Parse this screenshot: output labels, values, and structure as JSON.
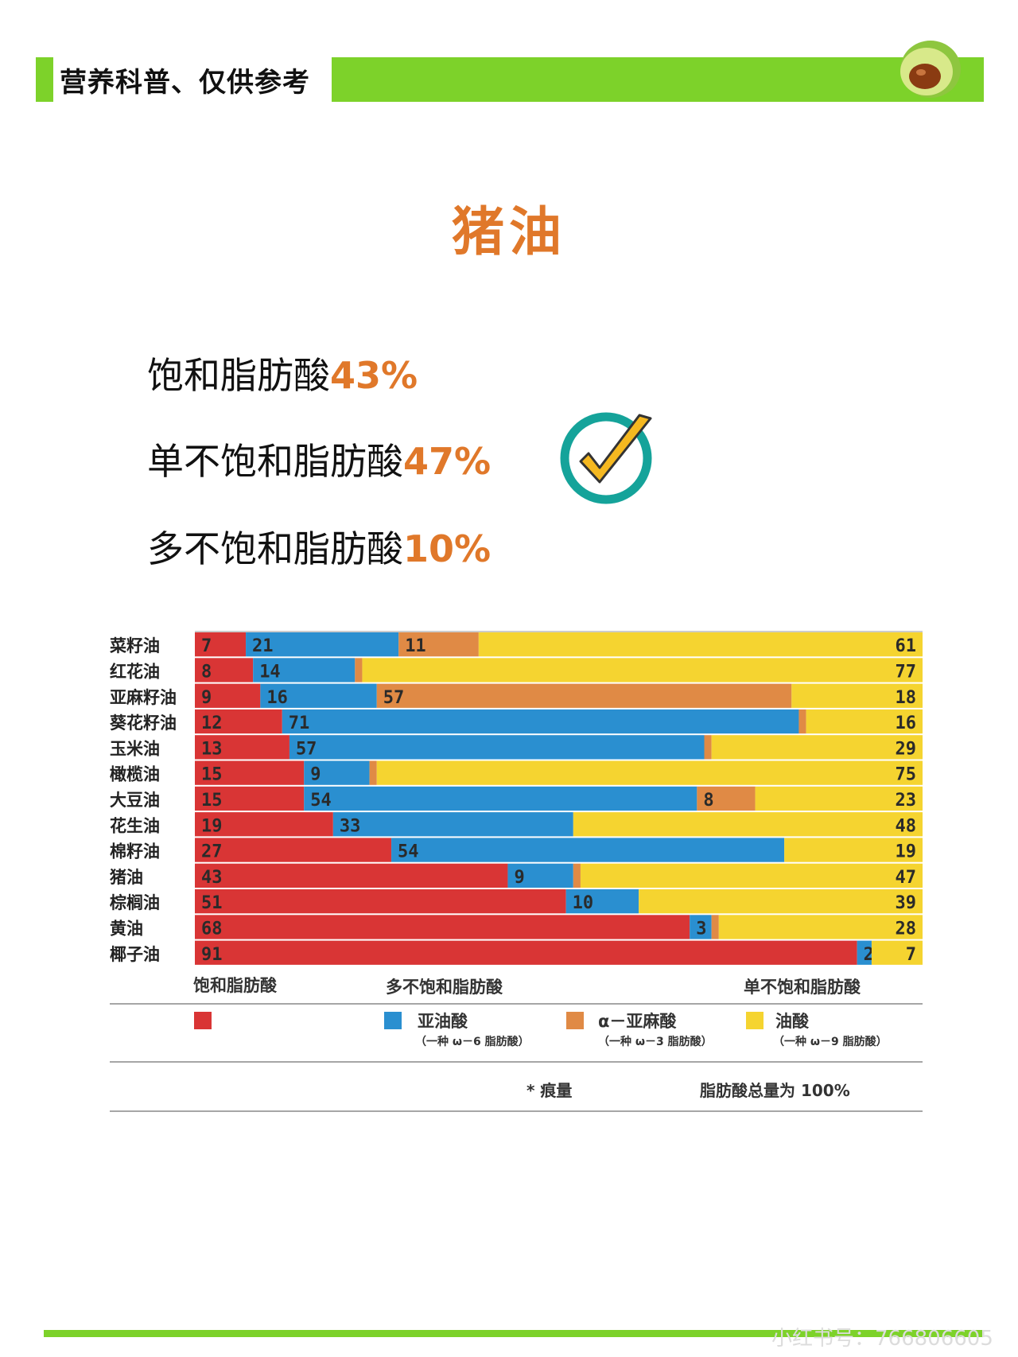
{
  "header": {
    "title": "营养科普、仅供参考"
  },
  "page_title": "猪油",
  "stats": [
    {
      "label": "饱和脂肪酸",
      "value": "43%"
    },
    {
      "label": "单不饱和脂肪酸",
      "value": "47%"
    },
    {
      "label": "多不饱和脂肪酸",
      "value": "10%"
    }
  ],
  "icons": {
    "check": "check-circle-icon",
    "logo": "avocado-icon"
  },
  "colors": {
    "green": "#7dd22a",
    "orange_text": "#e0782a",
    "sat": "#d93535",
    "la": "#2a8fd0",
    "ala": "#e08a45",
    "oleic": "#f5d430"
  },
  "chart_data": {
    "type": "bar",
    "orientation": "horizontal-stacked-100",
    "categories": [
      "菜籽油",
      "红花油",
      "亚麻籽油",
      "葵花籽油",
      "玉米油",
      "橄榄油",
      "大豆油",
      "花生油",
      "棉籽油",
      "猪油",
      "棕榈油",
      "黄油",
      "椰子油"
    ],
    "series": [
      {
        "name": "饱和脂肪酸",
        "values": [
          "7",
          "8",
          "9",
          "12",
          "13",
          "15",
          "15",
          "19",
          "27",
          "43",
          "51",
          "68",
          "91"
        ]
      },
      {
        "name": "亚油酸",
        "values": [
          "21",
          "14",
          "16",
          "71",
          "57",
          "9",
          "54",
          "33",
          "54",
          "9",
          "10",
          "3",
          "2"
        ]
      },
      {
        "name": "α－亚麻酸",
        "values": [
          "11",
          "1",
          "57",
          "1",
          "1",
          "1",
          "8",
          "*",
          "*",
          "1",
          "*",
          "1",
          ""
        ]
      },
      {
        "name": "油酸",
        "values": [
          "61",
          "77",
          "18",
          "16",
          "29",
          "75",
          "23",
          "48",
          "19",
          "47",
          "39",
          "28",
          "7"
        ]
      }
    ],
    "legend": {
      "group_sat": "饱和脂肪酸",
      "group_poly": "多不饱和脂肪酸",
      "group_mono": "单不饱和脂肪酸",
      "la_label": "亚油酸",
      "la_note": "（一种 ω－6 脂肪酸）",
      "ala_label": "α－亚麻酸",
      "ala_note": "（一种 ω－3 脂肪酸）",
      "oleic_label": "油酸",
      "oleic_note": "（一种 ω－9 脂肪酸）",
      "trace_note": "* 痕量",
      "total_note": "脂肪酸总量为 100%"
    }
  },
  "watermark": "小红书号：766806605"
}
